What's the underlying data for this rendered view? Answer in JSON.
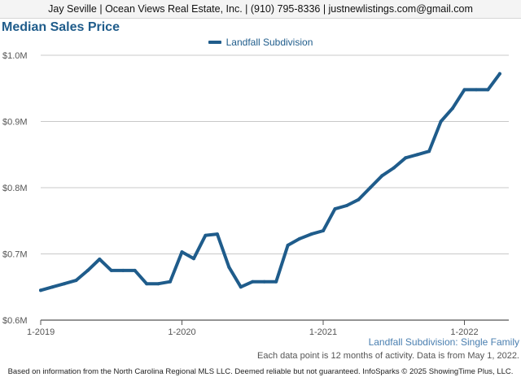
{
  "header": {
    "text": "Jay Seville | Ocean Views Real Estate, Inc. | (910) 795-8336 | justnewlistings.com@gmail.com"
  },
  "chart_data": {
    "type": "line",
    "title": "Median Sales Price",
    "xlabel": "",
    "ylabel": "",
    "ylim": [
      0.6,
      1.0
    ],
    "y_ticks": [
      {
        "value": 1.0,
        "label": "$1.0M"
      },
      {
        "value": 0.9,
        "label": "$0.9M"
      },
      {
        "value": 0.8,
        "label": "$0.8M"
      },
      {
        "value": 0.7,
        "label": "$0.7M"
      },
      {
        "value": 0.6,
        "label": "$0.6M"
      }
    ],
    "x_ticks": [
      {
        "date": "2019-01",
        "label": "1-2019"
      },
      {
        "date": "2020-01",
        "label": "1-2020"
      },
      {
        "date": "2021-01",
        "label": "1-2021"
      },
      {
        "date": "2022-01",
        "label": "1-2022"
      }
    ],
    "legend_position": "top-center",
    "grid": "horizontal",
    "series": [
      {
        "name": "Landfall Subdivision",
        "color": "#1f5c8b",
        "x": [
          "2019-01",
          "2019-02",
          "2019-03",
          "2019-04",
          "2019-05",
          "2019-06",
          "2019-07",
          "2019-08",
          "2019-09",
          "2019-10",
          "2019-11",
          "2019-12",
          "2020-01",
          "2020-02",
          "2020-03",
          "2020-04",
          "2020-05",
          "2020-06",
          "2020-07",
          "2020-08",
          "2020-09",
          "2020-10",
          "2020-11",
          "2020-12",
          "2021-01",
          "2021-02",
          "2021-03",
          "2021-04",
          "2021-05",
          "2021-06",
          "2021-07",
          "2021-08",
          "2021-09",
          "2021-10",
          "2021-11",
          "2021-12",
          "2022-01",
          "2022-02",
          "2022-03",
          "2022-04"
        ],
        "values": [
          0.645,
          0.65,
          0.655,
          0.66,
          0.675,
          0.692,
          0.675,
          0.675,
          0.675,
          0.655,
          0.655,
          0.658,
          0.703,
          0.693,
          0.728,
          0.73,
          0.68,
          0.65,
          0.658,
          0.658,
          0.658,
          0.713,
          0.723,
          0.73,
          0.735,
          0.768,
          0.773,
          0.782,
          0.8,
          0.818,
          0.83,
          0.845,
          0.85,
          0.855,
          0.9,
          0.92,
          0.948,
          0.948,
          0.948,
          0.972
        ]
      }
    ]
  },
  "series_caption": "Landfall Subdivision: Single Family",
  "note": "Each data point is 12 months of activity. Data is from May 1, 2022.",
  "footer": "Based on information from the North Carolina Regional MLS LLC. Deemed reliable but not guaranteed. InfoSparks © 2025 ShowingTime Plus, LLC."
}
